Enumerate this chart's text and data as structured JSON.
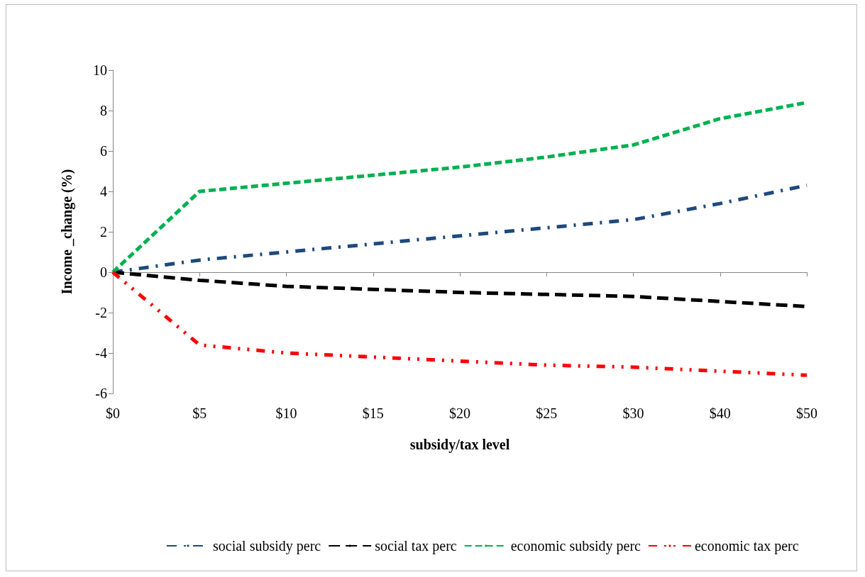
{
  "chart_data": {
    "type": "line",
    "xlabel": "subsidy/tax level",
    "ylabel": "Income _change (%)",
    "categories": [
      "$0",
      "$5",
      "$10",
      "$15",
      "$20",
      "$25",
      "$30",
      "$40",
      "$50"
    ],
    "series": [
      {
        "name": "social subsidy perc",
        "color": "#1f497d",
        "values": [
          0,
          0.6,
          1.0,
          1.4,
          1.8,
          2.2,
          2.6,
          3.4,
          4.3
        ]
      },
      {
        "name": "social tax perc",
        "color": "#000000",
        "values": [
          0,
          -0.4,
          -0.7,
          -0.85,
          -1.0,
          -1.1,
          -1.2,
          -1.45,
          -1.7
        ]
      },
      {
        "name": "economic subsidy perc",
        "color": "#00b050",
        "values": [
          0,
          4.0,
          4.4,
          4.8,
          5.2,
          5.7,
          6.3,
          7.6,
          8.4
        ]
      },
      {
        "name": "economic tax perc",
        "color": "#ff0000",
        "values": [
          0,
          -3.6,
          -4.0,
          -4.2,
          -4.4,
          -4.6,
          -4.7,
          -4.9,
          -5.1
        ]
      }
    ],
    "ylim": [
      -6,
      10
    ],
    "yticks": [
      -6,
      -4,
      -2,
      0,
      2,
      4,
      6,
      8,
      10
    ],
    "legend": "bottom",
    "marker": "none",
    "line_style": "dashed"
  }
}
